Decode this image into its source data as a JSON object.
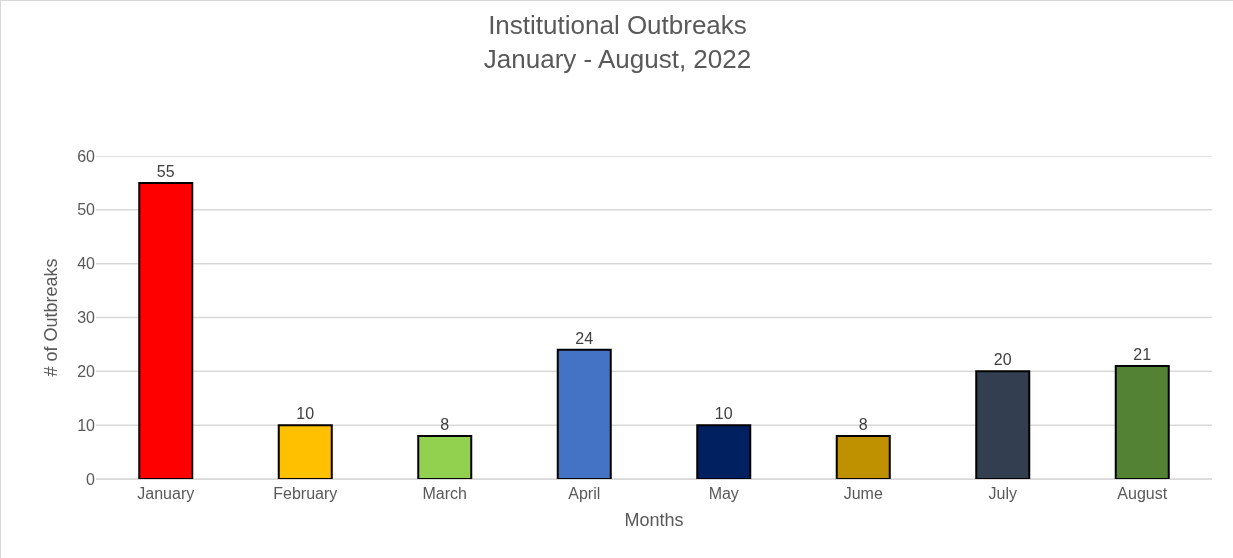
{
  "chart_data": {
    "type": "bar",
    "title": "Institutional Outbreaks",
    "subtitle": "January - August, 2022",
    "xlabel": "Months",
    "ylabel": "# of Outbreaks",
    "categories": [
      "January",
      "February",
      "March",
      "April",
      "May",
      "Jume",
      "July",
      "August"
    ],
    "values": [
      55,
      10,
      8,
      24,
      10,
      8,
      20,
      21
    ],
    "colors": [
      "#ff0000",
      "#ffc000",
      "#92d050",
      "#4472c4",
      "#002060",
      "#bf9000",
      "#333f50",
      "#548235"
    ],
    "ylim": [
      0,
      60
    ],
    "yticks": [
      0,
      10,
      20,
      30,
      40,
      50,
      60
    ],
    "grid": "y",
    "data_labels": true
  }
}
